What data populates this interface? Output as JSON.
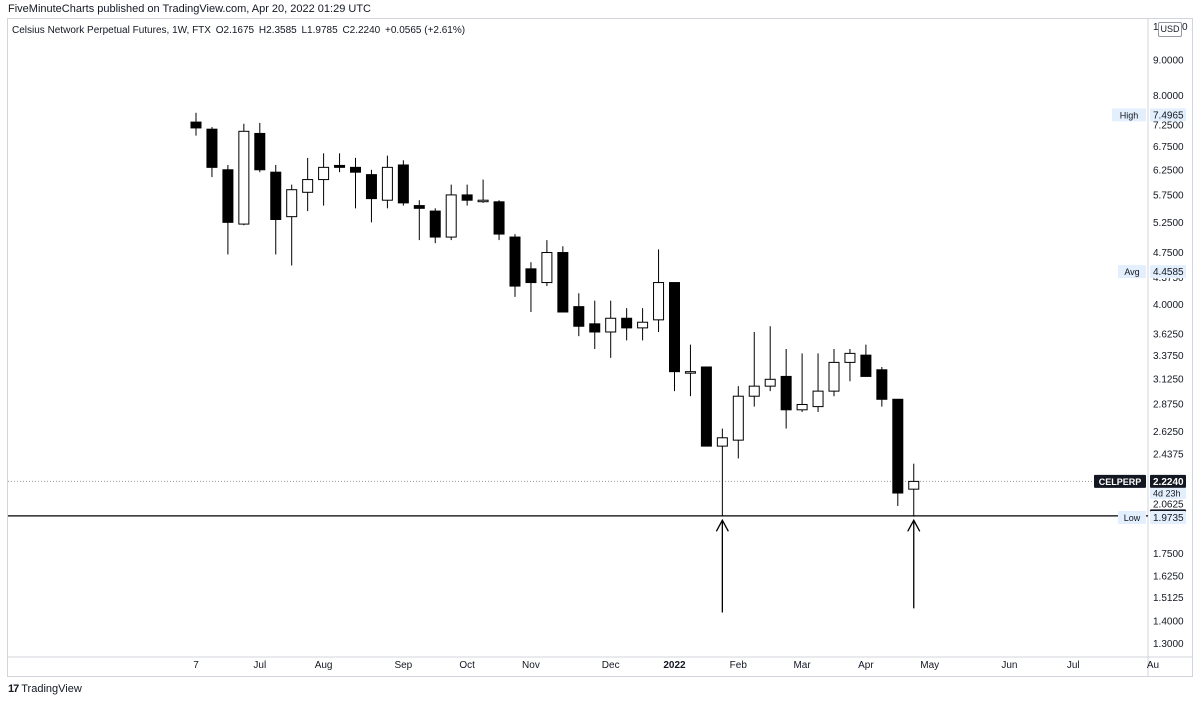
{
  "header": {
    "publisher": "FiveMinuteCharts published on TradingView.com, Apr 20, 2022 01:29 UTC"
  },
  "legend": {
    "symbol": "Celsius Network Perpetual Futures, 1W, FTX",
    "open": "O2.1675",
    "high": "H2.3585",
    "low": "L1.9785",
    "close": "C2.2240",
    "change": "+0.0565 (+2.61%)"
  },
  "currency": "USD",
  "currency_side_left": "10",
  "currency_side_right": "0",
  "footer": {
    "logo_text": "TradingView"
  },
  "colors": {
    "up_body": "#ffffff",
    "down_body": "#000000",
    "wick": "#000000",
    "badge_dark": "#131722",
    "badge_light": "#e3effd",
    "grid": "#d1d4dc"
  },
  "chart_data": {
    "type": "candlestick",
    "timeframe": "1W",
    "y_scale": "log",
    "ylim": [
      1.22,
      10.3
    ],
    "y_ticks": [
      "9.0000",
      "8.0000",
      "7.2500",
      "6.7500",
      "6.2500",
      "5.7500",
      "5.2500",
      "4.7500",
      "4.3750",
      "4.0000",
      "3.6250",
      "3.3750",
      "3.1250",
      "2.8750",
      "2.6250",
      "2.4375",
      "2.0625",
      "1.7500",
      "1.6250",
      "1.5125",
      "1.4000",
      "1.3000"
    ],
    "x_ticks": [
      "7",
      "Jul",
      "Aug",
      "Sep",
      "Oct",
      "Nov",
      "Dec",
      "2022",
      "Feb",
      "Mar",
      "Apr",
      "May",
      "Jun",
      "Jul",
      "Au"
    ],
    "x_tick_weeks": [
      0,
      4,
      8,
      13,
      17,
      21,
      26,
      30,
      34,
      38,
      42,
      46,
      51,
      55,
      60
    ],
    "candles": [
      {
        "o": 7.32,
        "h": 7.55,
        "l": 7.0,
        "c": 7.18
      },
      {
        "o": 7.15,
        "h": 7.2,
        "l": 6.1,
        "c": 6.3
      },
      {
        "o": 6.25,
        "h": 6.35,
        "l": 4.72,
        "c": 5.25
      },
      {
        "o": 5.22,
        "h": 7.28,
        "l": 5.2,
        "c": 7.1
      },
      {
        "o": 7.05,
        "h": 7.3,
        "l": 6.2,
        "c": 6.25
      },
      {
        "o": 6.2,
        "h": 6.35,
        "l": 4.72,
        "c": 5.3
      },
      {
        "o": 5.35,
        "h": 5.95,
        "l": 4.55,
        "c": 5.85
      },
      {
        "o": 5.8,
        "h": 6.5,
        "l": 5.45,
        "c": 6.05
      },
      {
        "o": 6.05,
        "h": 6.6,
        "l": 5.55,
        "c": 6.3
      },
      {
        "o": 6.34,
        "h": 6.6,
        "l": 6.2,
        "c": 6.3
      },
      {
        "o": 6.3,
        "h": 6.5,
        "l": 5.5,
        "c": 6.2
      },
      {
        "o": 6.15,
        "h": 6.25,
        "l": 5.25,
        "c": 5.68
      },
      {
        "o": 5.65,
        "h": 6.55,
        "l": 5.5,
        "c": 6.3
      },
      {
        "o": 6.35,
        "h": 6.45,
        "l": 5.55,
        "c": 5.6
      },
      {
        "o": 5.55,
        "h": 5.65,
        "l": 4.95,
        "c": 5.5
      },
      {
        "o": 5.45,
        "h": 5.5,
        "l": 4.9,
        "c": 5.0
      },
      {
        "o": 5.0,
        "h": 5.95,
        "l": 4.95,
        "c": 5.75
      },
      {
        "o": 5.75,
        "h": 5.95,
        "l": 5.55,
        "c": 5.65
      },
      {
        "o": 5.65,
        "h": 6.05,
        "l": 5.6,
        "c": 5.65
      },
      {
        "o": 5.62,
        "h": 5.65,
        "l": 4.95,
        "c": 5.05
      },
      {
        "o": 5.0,
        "h": 5.05,
        "l": 4.1,
        "c": 4.25
      },
      {
        "o": 4.5,
        "h": 4.6,
        "l": 3.9,
        "c": 4.3
      },
      {
        "o": 4.3,
        "h": 4.95,
        "l": 4.25,
        "c": 4.75
      },
      {
        "o": 4.75,
        "h": 4.85,
        "l": 3.9,
        "c": 3.9
      },
      {
        "o": 3.97,
        "h": 4.15,
        "l": 3.6,
        "c": 3.72
      },
      {
        "o": 3.75,
        "h": 4.05,
        "l": 3.45,
        "c": 3.65
      },
      {
        "o": 3.65,
        "h": 4.05,
        "l": 3.35,
        "c": 3.82
      },
      {
        "o": 3.82,
        "h": 3.95,
        "l": 3.55,
        "c": 3.7
      },
      {
        "o": 3.7,
        "h": 3.95,
        "l": 3.55,
        "c": 3.77
      },
      {
        "o": 3.8,
        "h": 4.8,
        "l": 3.65,
        "c": 4.3
      },
      {
        "o": 4.3,
        "h": 4.3,
        "l": 3.0,
        "c": 3.2
      },
      {
        "o": 3.2,
        "h": 3.5,
        "l": 2.95,
        "c": 3.2
      },
      {
        "o": 3.25,
        "h": 3.25,
        "l": 2.5,
        "c": 2.5
      },
      {
        "o": 2.5,
        "h": 2.65,
        "l": 1.9838,
        "c": 2.57
      },
      {
        "o": 2.55,
        "h": 3.05,
        "l": 2.4,
        "c": 2.95
      },
      {
        "o": 2.95,
        "h": 3.65,
        "l": 2.85,
        "c": 3.05
      },
      {
        "o": 3.05,
        "h": 3.72,
        "l": 3.0,
        "c": 3.12
      },
      {
        "o": 3.15,
        "h": 3.45,
        "l": 2.65,
        "c": 2.82
      },
      {
        "o": 2.82,
        "h": 3.4,
        "l": 2.8,
        "c": 2.87
      },
      {
        "o": 2.85,
        "h": 3.4,
        "l": 2.8,
        "c": 3.0
      },
      {
        "o": 3.0,
        "h": 3.45,
        "l": 2.95,
        "c": 3.3
      },
      {
        "o": 3.3,
        "h": 3.45,
        "l": 3.1,
        "c": 3.4
      },
      {
        "o": 3.38,
        "h": 3.5,
        "l": 3.15,
        "c": 3.15
      },
      {
        "o": 3.22,
        "h": 3.25,
        "l": 2.85,
        "c": 2.92
      },
      {
        "o": 2.92,
        "h": 2.92,
        "l": 2.05,
        "c": 2.14
      },
      {
        "o": 2.1675,
        "h": 2.3585,
        "l": 1.9785,
        "c": 2.224
      }
    ],
    "price_lines": [
      {
        "label": "High",
        "value": 7.4965,
        "value_text": "7.4965",
        "style": "light"
      },
      {
        "label": "Avg",
        "value": 4.4585,
        "value_text": "4.4585",
        "style": "light"
      },
      {
        "label": "CELPERP",
        "value": 2.224,
        "value_text": "2.2240",
        "sub_text": "4d 23h",
        "style": "dark",
        "dotted": true
      },
      {
        "label": "",
        "value": 1.984,
        "value_text": "1.9840",
        "style": "dark",
        "solid": true
      },
      {
        "label": "Low",
        "value": 1.9735,
        "value_text": "1.9735",
        "style": "light"
      }
    ],
    "annotations": [
      {
        "type": "arrow-up",
        "week": 33,
        "from": 1.44,
        "to": 1.955
      },
      {
        "type": "arrow-up",
        "week": 45,
        "from": 1.46,
        "to": 1.955
      }
    ]
  }
}
